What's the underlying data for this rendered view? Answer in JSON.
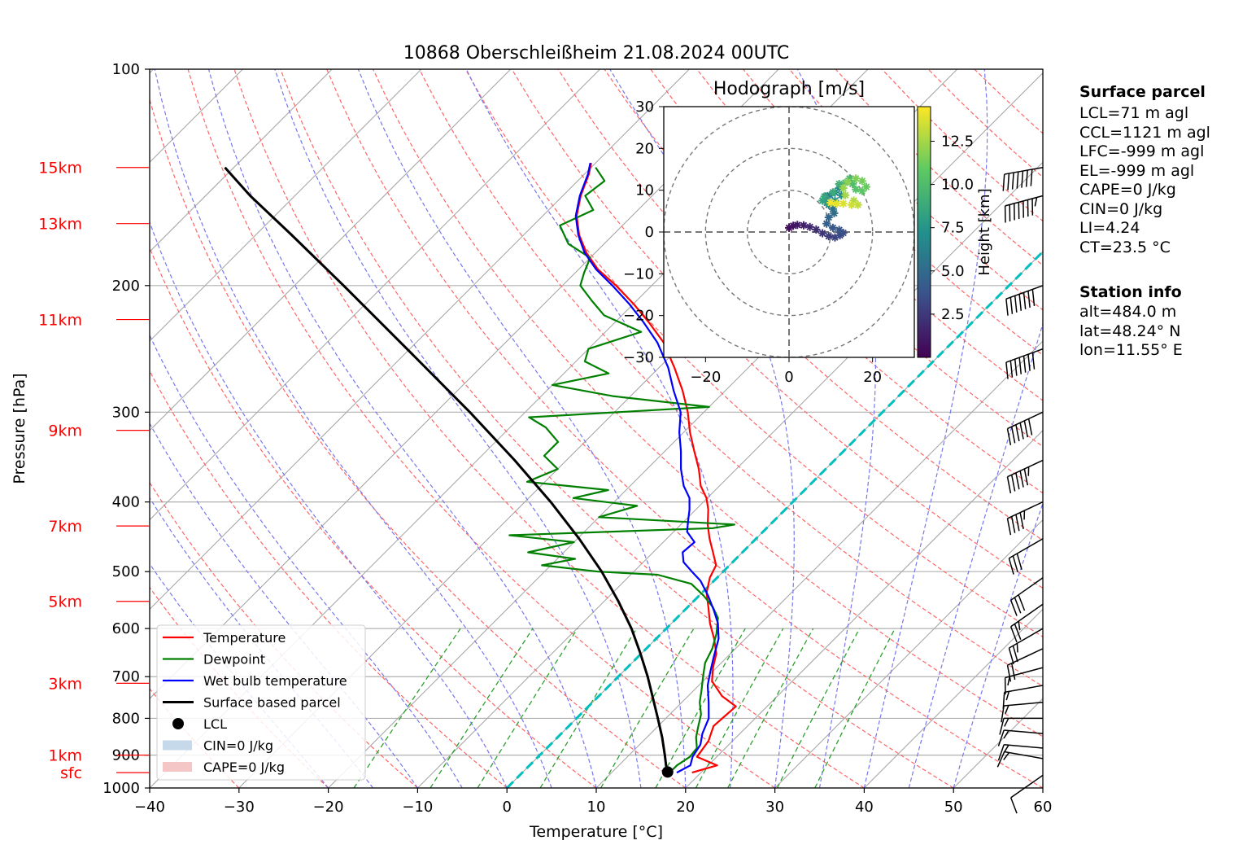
{
  "title": "10868 Oberschleißheim 21.08.2024 00UTC",
  "colors": {
    "temperature": "#ff0000",
    "dewpoint": "#008000",
    "wetbulb": "#0000ff",
    "parcel": "#000000",
    "dry_adiabat": "#ff6666",
    "moist_adiabat": "#7777ee",
    "mixing_ratio": "#2ca02c",
    "zero_isotherm": "#00bfbf",
    "km_labels": "#ff0000",
    "cape_fill": "#f4c6c6",
    "cin_fill": "#c6d9ea"
  },
  "chart_data": {
    "type": "skewt",
    "xlabel": "Temperature [°C]",
    "ylabel": "Pressure [hPa]",
    "xlim": [
      -40,
      60
    ],
    "ylim": [
      1000,
      100
    ],
    "y_scale": "log",
    "x_ticks": [
      "−40",
      "−30",
      "−20",
      "−10",
      "0",
      "10",
      "20",
      "30",
      "40",
      "50",
      "60"
    ],
    "y_ticks": [
      "100",
      "200",
      "300",
      "400",
      "500",
      "600",
      "700",
      "800",
      "900",
      "1000"
    ],
    "grid": true,
    "legend_position": "lower-left",
    "height_labels": [
      {
        "label": "15km",
        "p": 137
      },
      {
        "label": "13km",
        "p": 164
      },
      {
        "label": "11km",
        "p": 223
      },
      {
        "label": "9km",
        "p": 318
      },
      {
        "label": "7km",
        "p": 432
      },
      {
        "label": "5km",
        "p": 550
      },
      {
        "label": "3km",
        "p": 715
      },
      {
        "label": "1km",
        "p": 900
      },
      {
        "label": "sfc",
        "p": 952
      }
    ],
    "series": [
      {
        "name": "Temperature",
        "points": [
          [
            952,
            19.0
          ],
          [
            930,
            21.0
          ],
          [
            905,
            17.8
          ],
          [
            860,
            17.3
          ],
          [
            820,
            16.2
          ],
          [
            770,
            16.5
          ],
          [
            745,
            13.8
          ],
          [
            710,
            11.0
          ],
          [
            680,
            9.6
          ],
          [
            650,
            8.4
          ],
          [
            620,
            6.5
          ],
          [
            590,
            4.3
          ],
          [
            560,
            2.3
          ],
          [
            535,
            0.5
          ],
          [
            510,
            -0.8
          ],
          [
            490,
            -1.5
          ],
          [
            470,
            -3.3
          ],
          [
            450,
            -5.2
          ],
          [
            430,
            -7.0
          ],
          [
            410,
            -8.6
          ],
          [
            395,
            -10.1
          ],
          [
            380,
            -12.1
          ],
          [
            360,
            -14.2
          ],
          [
            340,
            -16.7
          ],
          [
            320,
            -19.3
          ],
          [
            300,
            -21.8
          ],
          [
            280,
            -24.8
          ],
          [
            260,
            -28.3
          ],
          [
            240,
            -32.3
          ],
          [
            225,
            -36.2
          ],
          [
            212,
            -40.0
          ],
          [
            200,
            -44.0
          ],
          [
            190,
            -47.8
          ],
          [
            180,
            -51.0
          ],
          [
            170,
            -53.8
          ],
          [
            160,
            -56.2
          ],
          [
            150,
            -58.0
          ],
          [
            140,
            -59.5
          ],
          [
            135,
            -60.5
          ]
        ]
      },
      {
        "name": "Dewpoint",
        "points": [
          [
            952,
            16.5
          ],
          [
            930,
            16.5
          ],
          [
            905,
            17.0
          ],
          [
            880,
            16.8
          ],
          [
            850,
            15.5
          ],
          [
            820,
            14.5
          ],
          [
            790,
            13.5
          ],
          [
            760,
            12.0
          ],
          [
            730,
            10.8
          ],
          [
            700,
            9.5
          ],
          [
            670,
            8.2
          ],
          [
            640,
            7.4
          ],
          [
            610,
            6.2
          ],
          [
            580,
            4.6
          ],
          [
            560,
            2.8
          ],
          [
            540,
            0.5
          ],
          [
            520,
            -2.2
          ],
          [
            505,
            -7.0
          ],
          [
            500,
            -14.0
          ],
          [
            490,
            -21.0
          ],
          [
            480,
            -18.0
          ],
          [
            470,
            -24.0
          ],
          [
            455,
            -20.0
          ],
          [
            445,
            -28.0
          ],
          [
            435,
            -6.0
          ],
          [
            430,
            -4.0
          ],
          [
            420,
            -20.0
          ],
          [
            405,
            -17.0
          ],
          [
            395,
            -25.0
          ],
          [
            385,
            -22.0
          ],
          [
            375,
            -32.0
          ],
          [
            360,
            -30.0
          ],
          [
            345,
            -33.0
          ],
          [
            330,
            -33.0
          ],
          [
            315,
            -36.0
          ],
          [
            305,
            -39.0
          ],
          [
            295,
            -20.0
          ],
          [
            285,
            -32.0
          ],
          [
            275,
            -40.0
          ],
          [
            265,
            -35.0
          ],
          [
            255,
            -39.0
          ],
          [
            245,
            -40.0
          ],
          [
            232,
            -36.0
          ],
          [
            220,
            -42.0
          ],
          [
            210,
            -45.0
          ],
          [
            200,
            -48.0
          ],
          [
            192,
            -49.0
          ],
          [
            183,
            -50.0
          ],
          [
            175,
            -54.0
          ],
          [
            165,
            -57.0
          ],
          [
            157,
            -55.0
          ],
          [
            150,
            -57.5
          ],
          [
            143,
            -57.0
          ],
          [
            137,
            -59.5
          ]
        ]
      },
      {
        "name": "Wet bulb temperature",
        "points": [
          [
            952,
            17.3
          ],
          [
            930,
            18.0
          ],
          [
            905,
            17.3
          ],
          [
            870,
            16.8
          ],
          [
            840,
            15.8
          ],
          [
            800,
            14.8
          ],
          [
            760,
            13.0
          ],
          [
            720,
            11.0
          ],
          [
            690,
            9.8
          ],
          [
            660,
            8.6
          ],
          [
            620,
            7.0
          ],
          [
            590,
            5.2
          ],
          [
            565,
            3.2
          ],
          [
            540,
            1.0
          ],
          [
            515,
            -1.5
          ],
          [
            500,
            -3.5
          ],
          [
            485,
            -5.5
          ],
          [
            470,
            -6.7
          ],
          [
            455,
            -6.5
          ],
          [
            440,
            -8.5
          ],
          [
            425,
            -9.6
          ],
          [
            410,
            -10.7
          ],
          [
            395,
            -12.0
          ],
          [
            380,
            -14.0
          ],
          [
            360,
            -16.2
          ],
          [
            340,
            -18.2
          ],
          [
            320,
            -20.5
          ],
          [
            300,
            -22.6
          ],
          [
            280,
            -25.8
          ],
          [
            260,
            -29.0
          ],
          [
            240,
            -33.0
          ],
          [
            225,
            -36.8
          ],
          [
            212,
            -40.5
          ],
          [
            200,
            -44.4
          ],
          [
            190,
            -48.0
          ],
          [
            180,
            -51.2
          ],
          [
            170,
            -53.9
          ],
          [
            160,
            -56.3
          ],
          [
            150,
            -58.1
          ],
          [
            140,
            -59.6
          ],
          [
            135,
            -60.6
          ]
        ]
      },
      {
        "name": "Surface based parcel",
        "points": [
          [
            952,
            16.2
          ],
          [
            900,
            14.0
          ],
          [
            850,
            11.7
          ],
          [
            800,
            9.1
          ],
          [
            750,
            6.3
          ],
          [
            700,
            3.3
          ],
          [
            650,
            -0.1
          ],
          [
            600,
            -3.9
          ],
          [
            550,
            -8.4
          ],
          [
            500,
            -13.6
          ],
          [
            450,
            -19.8
          ],
          [
            400,
            -27.1
          ],
          [
            350,
            -35.8
          ],
          [
            300,
            -46.2
          ],
          [
            250,
            -58.9
          ],
          [
            200,
            -74.5
          ],
          [
            170,
            -86.0
          ],
          [
            150,
            -95.0
          ],
          [
            137,
            -101.0
          ]
        ]
      }
    ],
    "lcl": {
      "p": 950,
      "t": 16.2
    },
    "zero_isotherm_label": "0",
    "legend": [
      {
        "label": "Temperature",
        "kind": "line",
        "color": "#ff0000"
      },
      {
        "label": "Dewpoint",
        "kind": "line",
        "color": "#008000"
      },
      {
        "label": "Wet bulb temperature",
        "kind": "line",
        "color": "#0000ff"
      },
      {
        "label": "Surface based parcel",
        "kind": "line",
        "color": "#000000"
      },
      {
        "label": "LCL",
        "kind": "dot",
        "color": "#000000"
      },
      {
        "label": "CIN=0 J/kg",
        "kind": "patch",
        "color": "#c6d9ea"
      },
      {
        "label": "CAPE=0 J/kg",
        "kind": "patch",
        "color": "#f4c6c6"
      }
    ],
    "wind_barbs": [
      {
        "p": 137,
        "dir": 260,
        "kt": 70
      },
      {
        "p": 150,
        "dir": 255,
        "kt": 75
      },
      {
        "p": 200,
        "dir": 250,
        "kt": 70
      },
      {
        "p": 245,
        "dir": 250,
        "kt": 70
      },
      {
        "p": 300,
        "dir": 245,
        "kt": 60
      },
      {
        "p": 350,
        "dir": 245,
        "kt": 55
      },
      {
        "p": 400,
        "dir": 245,
        "kt": 45
      },
      {
        "p": 450,
        "dir": 240,
        "kt": 30
      },
      {
        "p": 510,
        "dir": 235,
        "kt": 30
      },
      {
        "p": 555,
        "dir": 235,
        "kt": 25
      },
      {
        "p": 600,
        "dir": 240,
        "kt": 25
      },
      {
        "p": 640,
        "dir": 245,
        "kt": 20
      },
      {
        "p": 680,
        "dir": 255,
        "kt": 15
      },
      {
        "p": 720,
        "dir": 260,
        "kt": 15
      },
      {
        "p": 760,
        "dir": 265,
        "kt": 15
      },
      {
        "p": 800,
        "dir": 270,
        "kt": 15
      },
      {
        "p": 840,
        "dir": 275,
        "kt": 15
      },
      {
        "p": 880,
        "dir": 275,
        "kt": 15
      },
      {
        "p": 910,
        "dir": 280,
        "kt": 15
      },
      {
        "p": 960,
        "dir": 235,
        "kt": 10
      }
    ],
    "hodograph": {
      "title": "Hodograph [m/s]",
      "xlim": [
        -30,
        30
      ],
      "ylim": [
        -30,
        30
      ],
      "x_ticks": [
        "−20",
        "0",
        "20"
      ],
      "y_ticks": [
        "30",
        "20",
        "10",
        "0",
        "−10",
        "−20",
        "−30"
      ],
      "rings": [
        10,
        20,
        30
      ],
      "colorbar_label": "Height [km]",
      "colorbar_ticks": [
        "2.5",
        "5.0",
        "7.5",
        "10.0",
        "12.5"
      ],
      "height_range": [
        0,
        14.5
      ],
      "points": [
        [
          0.0,
          1.0,
          0.5
        ],
        [
          1.0,
          1.5,
          0.8
        ],
        [
          2.0,
          1.7,
          1.1
        ],
        [
          3.5,
          1.6,
          1.4
        ],
        [
          5.0,
          1.2,
          1.7
        ],
        [
          6.5,
          0.6,
          2.0
        ],
        [
          8.0,
          -0.3,
          2.3
        ],
        [
          9.5,
          -1.0,
          2.6
        ],
        [
          11.0,
          -1.3,
          2.9
        ],
        [
          12.2,
          -0.8,
          3.2
        ],
        [
          13.0,
          -0.2,
          3.5
        ],
        [
          12.0,
          0.5,
          3.8
        ],
        [
          10.5,
          1.0,
          4.1
        ],
        [
          9.0,
          2.0,
          4.4
        ],
        [
          9.5,
          3.5,
          4.7
        ],
        [
          10.8,
          4.5,
          5.0
        ],
        [
          10.5,
          5.5,
          5.3
        ],
        [
          9.5,
          6.5,
          5.6
        ],
        [
          8.8,
          8.5,
          5.9
        ],
        [
          9.8,
          8.8,
          6.2
        ],
        [
          11.0,
          9.5,
          6.5
        ],
        [
          12.0,
          10.5,
          6.8
        ],
        [
          12.5,
          8.8,
          7.1
        ],
        [
          11.0,
          7.5,
          7.4
        ],
        [
          10.0,
          6.8,
          7.7
        ],
        [
          9.0,
          7.0,
          8.0
        ],
        [
          8.0,
          7.5,
          8.3
        ],
        [
          8.5,
          8.5,
          8.6
        ],
        [
          10.5,
          9.5,
          8.9
        ],
        [
          12.0,
          11.5,
          9.2
        ],
        [
          13.5,
          11.8,
          9.5
        ],
        [
          14.5,
          12.8,
          9.8
        ],
        [
          15.2,
          11.5,
          10.1
        ],
        [
          16.0,
          10.2,
          10.4
        ],
        [
          17.5,
          9.8,
          10.7
        ],
        [
          18.5,
          10.8,
          11.0
        ],
        [
          17.5,
          12.2,
          11.3
        ],
        [
          16.0,
          12.8,
          11.6
        ],
        [
          14.0,
          12.0,
          11.9
        ],
        [
          13.0,
          10.5,
          12.2
        ],
        [
          13.5,
          8.8,
          12.5
        ],
        [
          15.5,
          7.5,
          12.8
        ],
        [
          16.5,
          6.5,
          13.1
        ],
        [
          15.0,
          6.5,
          13.4
        ],
        [
          13.0,
          6.8,
          13.7
        ],
        [
          11.5,
          6.8,
          14.0
        ],
        [
          10.0,
          7.0,
          14.3
        ]
      ]
    }
  },
  "surface_parcel": {
    "heading": "Surface parcel",
    "lines": [
      "LCL=71 m agl",
      "CCL=1121 m agl",
      "LFC=-999 m agl",
      "EL=-999 m agl",
      "CAPE=0 J/kg",
      "CIN=0 J/kg",
      "LI=4.24",
      "CT=23.5 °C"
    ]
  },
  "station_info": {
    "heading": "Station info",
    "lines": [
      "alt=484.0 m",
      "lat=48.24° N",
      "lon=11.55° E"
    ]
  }
}
